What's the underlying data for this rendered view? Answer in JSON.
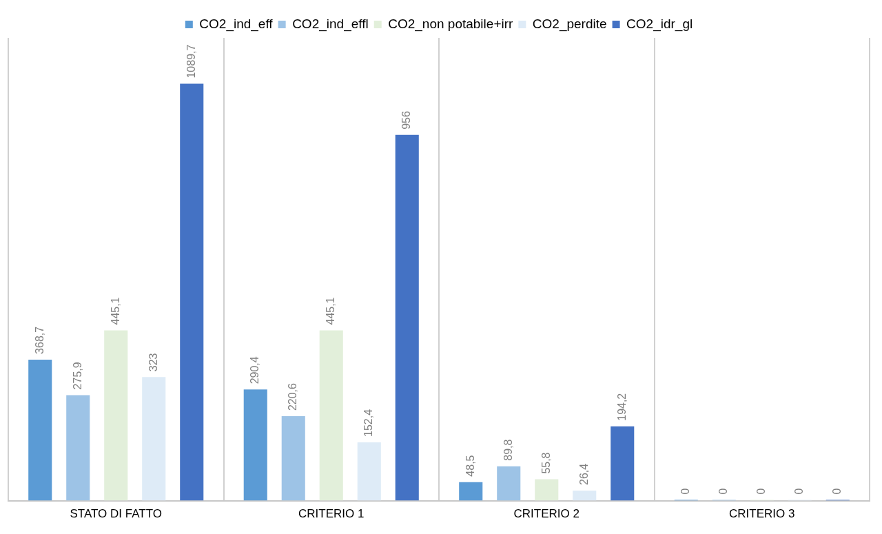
{
  "chart_data": {
    "type": "bar",
    "categories": [
      "STATO DI FATTO",
      "CRITERIO 1",
      "CRITERIO 2",
      "CRITERIO 3"
    ],
    "series": [
      {
        "name": "CO2_ind_eff",
        "color": "#5b9bd5",
        "values": [
          368.7,
          290.4,
          48.5,
          0
        ],
        "value_labels": [
          "368,7",
          "290,4",
          "48,5",
          "0"
        ]
      },
      {
        "name": "CO2_ind_effl",
        "color": "#9dc3e6",
        "values": [
          275.9,
          220.6,
          89.8,
          0
        ],
        "value_labels": [
          "275,9",
          "220,6",
          "89,8",
          "0"
        ]
      },
      {
        "name": "CO2_non potabile+irr",
        "color": "#e2efda",
        "values": [
          445.1,
          445.1,
          55.8,
          0
        ],
        "value_labels": [
          "445,1",
          "445,1",
          "55,8",
          "0"
        ]
      },
      {
        "name": "CO2_perdite",
        "color": "#deebf7",
        "values": [
          323,
          152.4,
          26.4,
          0
        ],
        "value_labels": [
          "323",
          "152,4",
          "26,4",
          "0"
        ]
      },
      {
        "name": "CO2_idr_gl",
        "color": "#4472c4",
        "values": [
          1089.7,
          956,
          194.2,
          0
        ],
        "value_labels": [
          "1089,7",
          "956",
          "194,2",
          "0"
        ]
      }
    ],
    "grid": "x",
    "legend": "top"
  }
}
